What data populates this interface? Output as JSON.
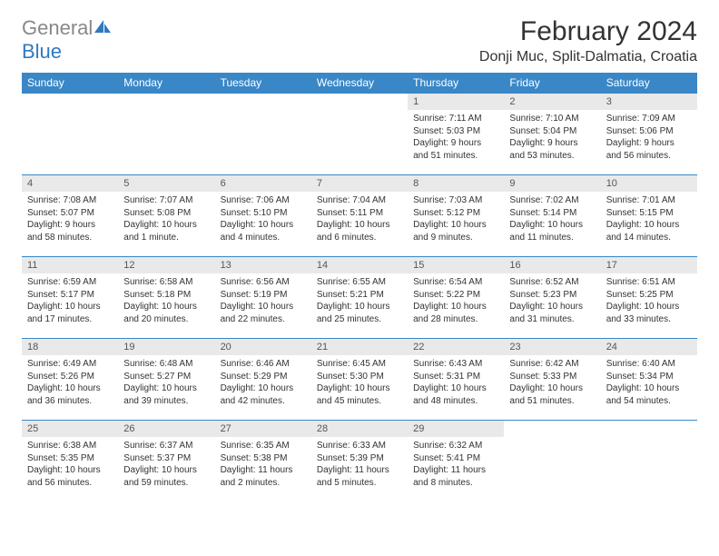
{
  "brand": {
    "text_gray": "General",
    "text_blue": "Blue",
    "icon_color": "#2f7abf"
  },
  "header": {
    "month_title": "February 2024",
    "location": "Donji Muc, Split-Dalmatia, Croatia"
  },
  "colors": {
    "header_bg": "#3a87c7",
    "header_text": "#ffffff",
    "daynum_bg": "#e9e9e9",
    "border": "#3a87c7",
    "body_text": "#333333"
  },
  "typography": {
    "month_title_fontsize": 30,
    "location_fontsize": 16,
    "weekday_fontsize": 12,
    "daynum_fontsize": 11,
    "body_fontsize": 10
  },
  "weekdays": [
    "Sunday",
    "Monday",
    "Tuesday",
    "Wednesday",
    "Thursday",
    "Friday",
    "Saturday"
  ],
  "weeks": [
    [
      null,
      null,
      null,
      null,
      {
        "n": "1",
        "sunrise": "Sunrise: 7:11 AM",
        "sunset": "Sunset: 5:03 PM",
        "daylight1": "Daylight: 9 hours",
        "daylight2": "and 51 minutes."
      },
      {
        "n": "2",
        "sunrise": "Sunrise: 7:10 AM",
        "sunset": "Sunset: 5:04 PM",
        "daylight1": "Daylight: 9 hours",
        "daylight2": "and 53 minutes."
      },
      {
        "n": "3",
        "sunrise": "Sunrise: 7:09 AM",
        "sunset": "Sunset: 5:06 PM",
        "daylight1": "Daylight: 9 hours",
        "daylight2": "and 56 minutes."
      }
    ],
    [
      {
        "n": "4",
        "sunrise": "Sunrise: 7:08 AM",
        "sunset": "Sunset: 5:07 PM",
        "daylight1": "Daylight: 9 hours",
        "daylight2": "and 58 minutes."
      },
      {
        "n": "5",
        "sunrise": "Sunrise: 7:07 AM",
        "sunset": "Sunset: 5:08 PM",
        "daylight1": "Daylight: 10 hours",
        "daylight2": "and 1 minute."
      },
      {
        "n": "6",
        "sunrise": "Sunrise: 7:06 AM",
        "sunset": "Sunset: 5:10 PM",
        "daylight1": "Daylight: 10 hours",
        "daylight2": "and 4 minutes."
      },
      {
        "n": "7",
        "sunrise": "Sunrise: 7:04 AM",
        "sunset": "Sunset: 5:11 PM",
        "daylight1": "Daylight: 10 hours",
        "daylight2": "and 6 minutes."
      },
      {
        "n": "8",
        "sunrise": "Sunrise: 7:03 AM",
        "sunset": "Sunset: 5:12 PM",
        "daylight1": "Daylight: 10 hours",
        "daylight2": "and 9 minutes."
      },
      {
        "n": "9",
        "sunrise": "Sunrise: 7:02 AM",
        "sunset": "Sunset: 5:14 PM",
        "daylight1": "Daylight: 10 hours",
        "daylight2": "and 11 minutes."
      },
      {
        "n": "10",
        "sunrise": "Sunrise: 7:01 AM",
        "sunset": "Sunset: 5:15 PM",
        "daylight1": "Daylight: 10 hours",
        "daylight2": "and 14 minutes."
      }
    ],
    [
      {
        "n": "11",
        "sunrise": "Sunrise: 6:59 AM",
        "sunset": "Sunset: 5:17 PM",
        "daylight1": "Daylight: 10 hours",
        "daylight2": "and 17 minutes."
      },
      {
        "n": "12",
        "sunrise": "Sunrise: 6:58 AM",
        "sunset": "Sunset: 5:18 PM",
        "daylight1": "Daylight: 10 hours",
        "daylight2": "and 20 minutes."
      },
      {
        "n": "13",
        "sunrise": "Sunrise: 6:56 AM",
        "sunset": "Sunset: 5:19 PM",
        "daylight1": "Daylight: 10 hours",
        "daylight2": "and 22 minutes."
      },
      {
        "n": "14",
        "sunrise": "Sunrise: 6:55 AM",
        "sunset": "Sunset: 5:21 PM",
        "daylight1": "Daylight: 10 hours",
        "daylight2": "and 25 minutes."
      },
      {
        "n": "15",
        "sunrise": "Sunrise: 6:54 AM",
        "sunset": "Sunset: 5:22 PM",
        "daylight1": "Daylight: 10 hours",
        "daylight2": "and 28 minutes."
      },
      {
        "n": "16",
        "sunrise": "Sunrise: 6:52 AM",
        "sunset": "Sunset: 5:23 PM",
        "daylight1": "Daylight: 10 hours",
        "daylight2": "and 31 minutes."
      },
      {
        "n": "17",
        "sunrise": "Sunrise: 6:51 AM",
        "sunset": "Sunset: 5:25 PM",
        "daylight1": "Daylight: 10 hours",
        "daylight2": "and 33 minutes."
      }
    ],
    [
      {
        "n": "18",
        "sunrise": "Sunrise: 6:49 AM",
        "sunset": "Sunset: 5:26 PM",
        "daylight1": "Daylight: 10 hours",
        "daylight2": "and 36 minutes."
      },
      {
        "n": "19",
        "sunrise": "Sunrise: 6:48 AM",
        "sunset": "Sunset: 5:27 PM",
        "daylight1": "Daylight: 10 hours",
        "daylight2": "and 39 minutes."
      },
      {
        "n": "20",
        "sunrise": "Sunrise: 6:46 AM",
        "sunset": "Sunset: 5:29 PM",
        "daylight1": "Daylight: 10 hours",
        "daylight2": "and 42 minutes."
      },
      {
        "n": "21",
        "sunrise": "Sunrise: 6:45 AM",
        "sunset": "Sunset: 5:30 PM",
        "daylight1": "Daylight: 10 hours",
        "daylight2": "and 45 minutes."
      },
      {
        "n": "22",
        "sunrise": "Sunrise: 6:43 AM",
        "sunset": "Sunset: 5:31 PM",
        "daylight1": "Daylight: 10 hours",
        "daylight2": "and 48 minutes."
      },
      {
        "n": "23",
        "sunrise": "Sunrise: 6:42 AM",
        "sunset": "Sunset: 5:33 PM",
        "daylight1": "Daylight: 10 hours",
        "daylight2": "and 51 minutes."
      },
      {
        "n": "24",
        "sunrise": "Sunrise: 6:40 AM",
        "sunset": "Sunset: 5:34 PM",
        "daylight1": "Daylight: 10 hours",
        "daylight2": "and 54 minutes."
      }
    ],
    [
      {
        "n": "25",
        "sunrise": "Sunrise: 6:38 AM",
        "sunset": "Sunset: 5:35 PM",
        "daylight1": "Daylight: 10 hours",
        "daylight2": "and 56 minutes."
      },
      {
        "n": "26",
        "sunrise": "Sunrise: 6:37 AM",
        "sunset": "Sunset: 5:37 PM",
        "daylight1": "Daylight: 10 hours",
        "daylight2": "and 59 minutes."
      },
      {
        "n": "27",
        "sunrise": "Sunrise: 6:35 AM",
        "sunset": "Sunset: 5:38 PM",
        "daylight1": "Daylight: 11 hours",
        "daylight2": "and 2 minutes."
      },
      {
        "n": "28",
        "sunrise": "Sunrise: 6:33 AM",
        "sunset": "Sunset: 5:39 PM",
        "daylight1": "Daylight: 11 hours",
        "daylight2": "and 5 minutes."
      },
      {
        "n": "29",
        "sunrise": "Sunrise: 6:32 AM",
        "sunset": "Sunset: 5:41 PM",
        "daylight1": "Daylight: 11 hours",
        "daylight2": "and 8 minutes."
      },
      null,
      null
    ]
  ]
}
